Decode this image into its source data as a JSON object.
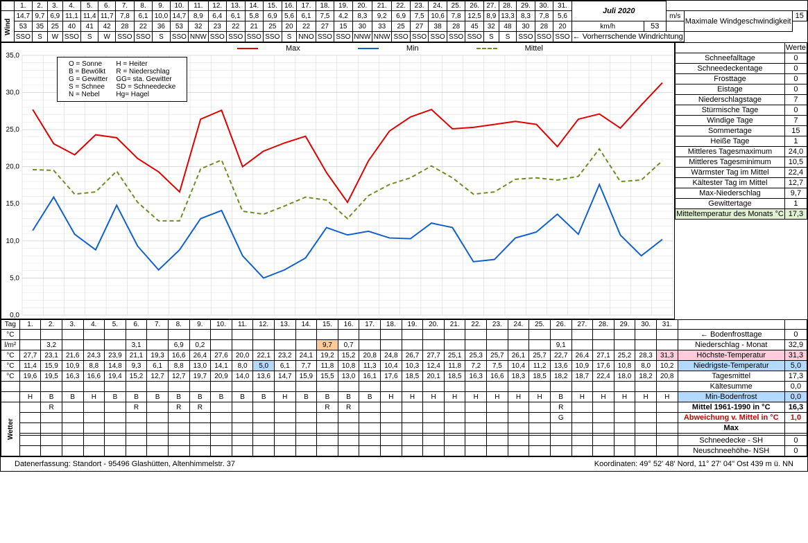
{
  "title": "Juli 2020",
  "days": [
    "1.",
    "2.",
    "3.",
    "4.",
    "5.",
    "6.",
    "7.",
    "8.",
    "9.",
    "10.",
    "11.",
    "12.",
    "13.",
    "14.",
    "15.",
    "16.",
    "17.",
    "18.",
    "19.",
    "20.",
    "21.",
    "22.",
    "23.",
    "24.",
    "25.",
    "26.",
    "27.",
    "28.",
    "29.",
    "30.",
    "31."
  ],
  "wind_ms": [
    "14,7",
    "9,7",
    "6,9",
    "11,1",
    "11,4",
    "11,7",
    "7,8",
    "6,1",
    "10,0",
    "14,7",
    "8,9",
    "6,4",
    "6,1",
    "5,8",
    "6,9",
    "5,6",
    "6,1",
    "7,5",
    "4,2",
    "8,3",
    "9,2",
    "6,9",
    "7,5",
    "10,6",
    "7,8",
    "12,5",
    "8,9",
    "13,3",
    "8,3",
    "7,8",
    "5,6"
  ],
  "wind_kmh": [
    "53",
    "35",
    "25",
    "40",
    "41",
    "42",
    "28",
    "22",
    "36",
    "53",
    "32",
    "23",
    "22",
    "21",
    "25",
    "20",
    "22",
    "27",
    "15",
    "30",
    "33",
    "25",
    "27",
    "38",
    "28",
    "45",
    "32",
    "48",
    "30",
    "28",
    "20"
  ],
  "wind_dir": [
    "SSO",
    "S",
    "W",
    "SSO",
    "S",
    "W",
    "SSO",
    "SSO",
    "S",
    "SSO",
    "NNW",
    "SSO",
    "SSO",
    "SSO",
    "SSO",
    "S",
    "NNO",
    "SSO",
    "SSO",
    "NNW",
    "NNW",
    "SSO",
    "SSO",
    "SSO",
    "SSO",
    "SSO",
    "S",
    "S",
    "SSO",
    "SSO",
    "SSO"
  ],
  "stat_labels": {
    "max_ws": "Maximale Windgeschwindigkeit",
    "vorherr": "← Vorherrschende Windrichtung",
    "werte": "Werte",
    "schneefall": "Schneefalltage",
    "schneedecke": "Schneedeckentage",
    "frost": "Frosttage",
    "eis": "Eistage",
    "nieder": "Niederschlagstage",
    "sturm": "Stürmische Tage",
    "windig": "Windige Tage",
    "sommer": "Sommertage",
    "heiss": "Heiße Tage",
    "mitmax": "Mittleres Tagesmaximum",
    "mitmin": "Mittleres Tagesminimum",
    "warm": "Wärmster Tag im Mittel",
    "kalt": "Kältester Tag im Mittel",
    "maxnieder": "Max-Niederschlag",
    "gewitter": "Gewittertage",
    "mitteltemp": "Mitteltemperatur des Monats °C",
    "bodenfrost": "← Bodenfrosttage",
    "niedermonat": "Niederschlag - Monat",
    "hoechste": "Höchste-Temperatur",
    "niedrigste": "Niedrigste-Temperatur",
    "tagesmittel": "Tagesmittel",
    "kaeltesumme": "Kältesumme",
    "minboden": "Min-Bodenfrost",
    "mittel1961": "Mittel 1961-1990 in °C",
    "abweich": "Abweichung v. Mittel in °C",
    "max": "Max",
    "schneesh": "Schneedecke -  SH",
    "neuschnee": "Neuschneehöhe- NSH"
  },
  "stat_values": {
    "max_ws_ms": "15",
    "max_ws_kmh": "53",
    "schneefall": "0",
    "schneedecke": "0",
    "frost": "0",
    "eis": "0",
    "nieder": "7",
    "sturm": "0",
    "windig": "7",
    "sommer": "15",
    "heiss": "1",
    "mitmax": "24,0",
    "mitmin": "10,5",
    "warm": "22,4",
    "kalt": "12,7",
    "maxnieder": "9,7",
    "gewitter": "1",
    "mitteltemp": "17,3",
    "bodenfrost": "0",
    "niedermonat": "32,9",
    "hoechste": "31,3",
    "niedrigste": "5,0",
    "tagesmittel": "17,3",
    "kaeltesumme": "0,0",
    "minboden": "0,0",
    "mittel1961": "16,3",
    "abweich": "1,0",
    "schneesh": "0",
    "neuschnee": "0"
  },
  "row_labels": {
    "tag": "Tag",
    "c": "°C",
    "lm2": "l/m²"
  },
  "units": {
    "ms": "m/s",
    "kmh": "km/h"
  },
  "precip": [
    "",
    "3,2",
    "",
    "",
    "",
    "3,1",
    "",
    "6,9",
    "0,2",
    "",
    "",
    "",
    "",
    "",
    "9,7",
    "0,7",
    "",
    "",
    "",
    "",
    "",
    "",
    "",
    "",
    "",
    "9,1",
    "",
    "",
    "",
    "",
    ""
  ],
  "tmax": [
    "27,7",
    "23,1",
    "21,6",
    "24,3",
    "23,9",
    "21,1",
    "19,3",
    "16,6",
    "26,4",
    "27,6",
    "20,0",
    "22,1",
    "23,2",
    "24,1",
    "19,2",
    "15,2",
    "20,8",
    "24,8",
    "26,7",
    "27,7",
    "25,1",
    "25,3",
    "25,7",
    "26,1",
    "25,7",
    "22,7",
    "26,4",
    "27,1",
    "25,2",
    "28,3",
    "31,3"
  ],
  "tmin": [
    "11,4",
    "15,9",
    "10,9",
    "8,8",
    "14,8",
    "9,3",
    "6,1",
    "8,8",
    "13,0",
    "14,1",
    "8,0",
    "5,0",
    "6,1",
    "7,7",
    "11,8",
    "10,8",
    "11,3",
    "10,4",
    "10,3",
    "12,4",
    "11,8",
    "7,2",
    "7,5",
    "10,4",
    "11,2",
    "13,6",
    "10,9",
    "17,6",
    "10,8",
    "8,0",
    "10,2"
  ],
  "tmittel": [
    "19,6",
    "19,5",
    "16,3",
    "16,6",
    "19,4",
    "15,2",
    "12,7",
    "12,7",
    "19,7",
    "20,9",
    "14,0",
    "13,6",
    "14,7",
    "15,9",
    "15,5",
    "13,0",
    "16,1",
    "17,6",
    "18,5",
    "20,1",
    "18,5",
    "16,3",
    "16,6",
    "18,3",
    "18,5",
    "18,2",
    "18,7",
    "22,4",
    "18,0",
    "18,2",
    "20,8"
  ],
  "weather1": [
    "H",
    "B",
    "B",
    "H",
    "B",
    "B",
    "B",
    "B",
    "B",
    "B",
    "B",
    "B",
    "H",
    "B",
    "B",
    "B",
    "B",
    "H",
    "H",
    "H",
    "H",
    "H",
    "H",
    "H",
    "H",
    "B",
    "H",
    "H",
    "H",
    "H",
    "H"
  ],
  "weather2": [
    "",
    "R",
    "",
    "",
    "",
    "R",
    "",
    "R",
    "R",
    "",
    "",
    "",
    "",
    "",
    "R",
    "R",
    "",
    "",
    "",
    "",
    "",
    "",
    "",
    "",
    "",
    "R",
    "",
    "",
    "",
    "",
    ""
  ],
  "weather3": [
    "",
    "",
    "",
    "",
    "",
    "",
    "",
    "",
    "",
    "",
    "",
    "",
    "",
    "",
    "",
    "",
    "",
    "",
    "",
    "",
    "",
    "",
    "",
    "",
    "",
    "G",
    "",
    "",
    "",
    "",
    ""
  ],
  "tmax_n": [
    27.7,
    23.1,
    21.6,
    24.3,
    23.9,
    21.1,
    19.3,
    16.6,
    26.4,
    27.6,
    20.0,
    22.1,
    23.2,
    24.1,
    19.2,
    15.2,
    20.8,
    24.8,
    26.7,
    27.7,
    25.1,
    25.3,
    25.7,
    26.1,
    25.7,
    22.7,
    26.4,
    27.1,
    25.2,
    28.3,
    31.3
  ],
  "tmin_n": [
    11.4,
    15.9,
    10.9,
    8.8,
    14.8,
    9.3,
    6.1,
    8.8,
    13.0,
    14.1,
    8.0,
    5.0,
    6.1,
    7.7,
    11.8,
    10.8,
    11.3,
    10.4,
    10.3,
    12.4,
    11.8,
    7.2,
    7.5,
    10.4,
    11.2,
    13.6,
    10.9,
    17.6,
    10.8,
    8.0,
    10.2
  ],
  "tmittel_n": [
    19.6,
    19.5,
    16.3,
    16.6,
    19.4,
    15.2,
    12.7,
    12.7,
    19.7,
    20.9,
    14.0,
    13.6,
    14.7,
    15.9,
    15.5,
    13.0,
    16.1,
    17.6,
    18.5,
    20.1,
    18.5,
    16.3,
    16.6,
    18.3,
    18.5,
    18.2,
    18.7,
    22.4,
    18.0,
    18.2,
    20.8
  ],
  "chart": {
    "ylim": [
      0,
      35
    ],
    "ystep": 5,
    "colors": {
      "max": "#e00000",
      "min": "#1060d0",
      "mittel": "#6b8e23",
      "grid": "#d0d0d0"
    }
  },
  "legend_names": {
    "max": "Max",
    "min": "Min",
    "mittel": "Mittel"
  },
  "legend_codes": [
    [
      "O = Sonne",
      "H = Heiter"
    ],
    [
      "B = Bewölkt",
      "R = Niederschlag"
    ],
    [
      "G = Gewitter",
      "GG= sta. Gewitter"
    ],
    [
      "S = Schnee",
      "SD = Schneedecke"
    ],
    [
      "N = Nebel",
      "Hg= Hagel"
    ]
  ],
  "footer": {
    "left": "Datenerfassung:  Standort -   95496  Glashütten, Altenhimmelstr. 37",
    "right": "Koordinaten:  49° 52' 48' Nord,   11° 27' 04\" Ost   439 m ü. NN"
  }
}
